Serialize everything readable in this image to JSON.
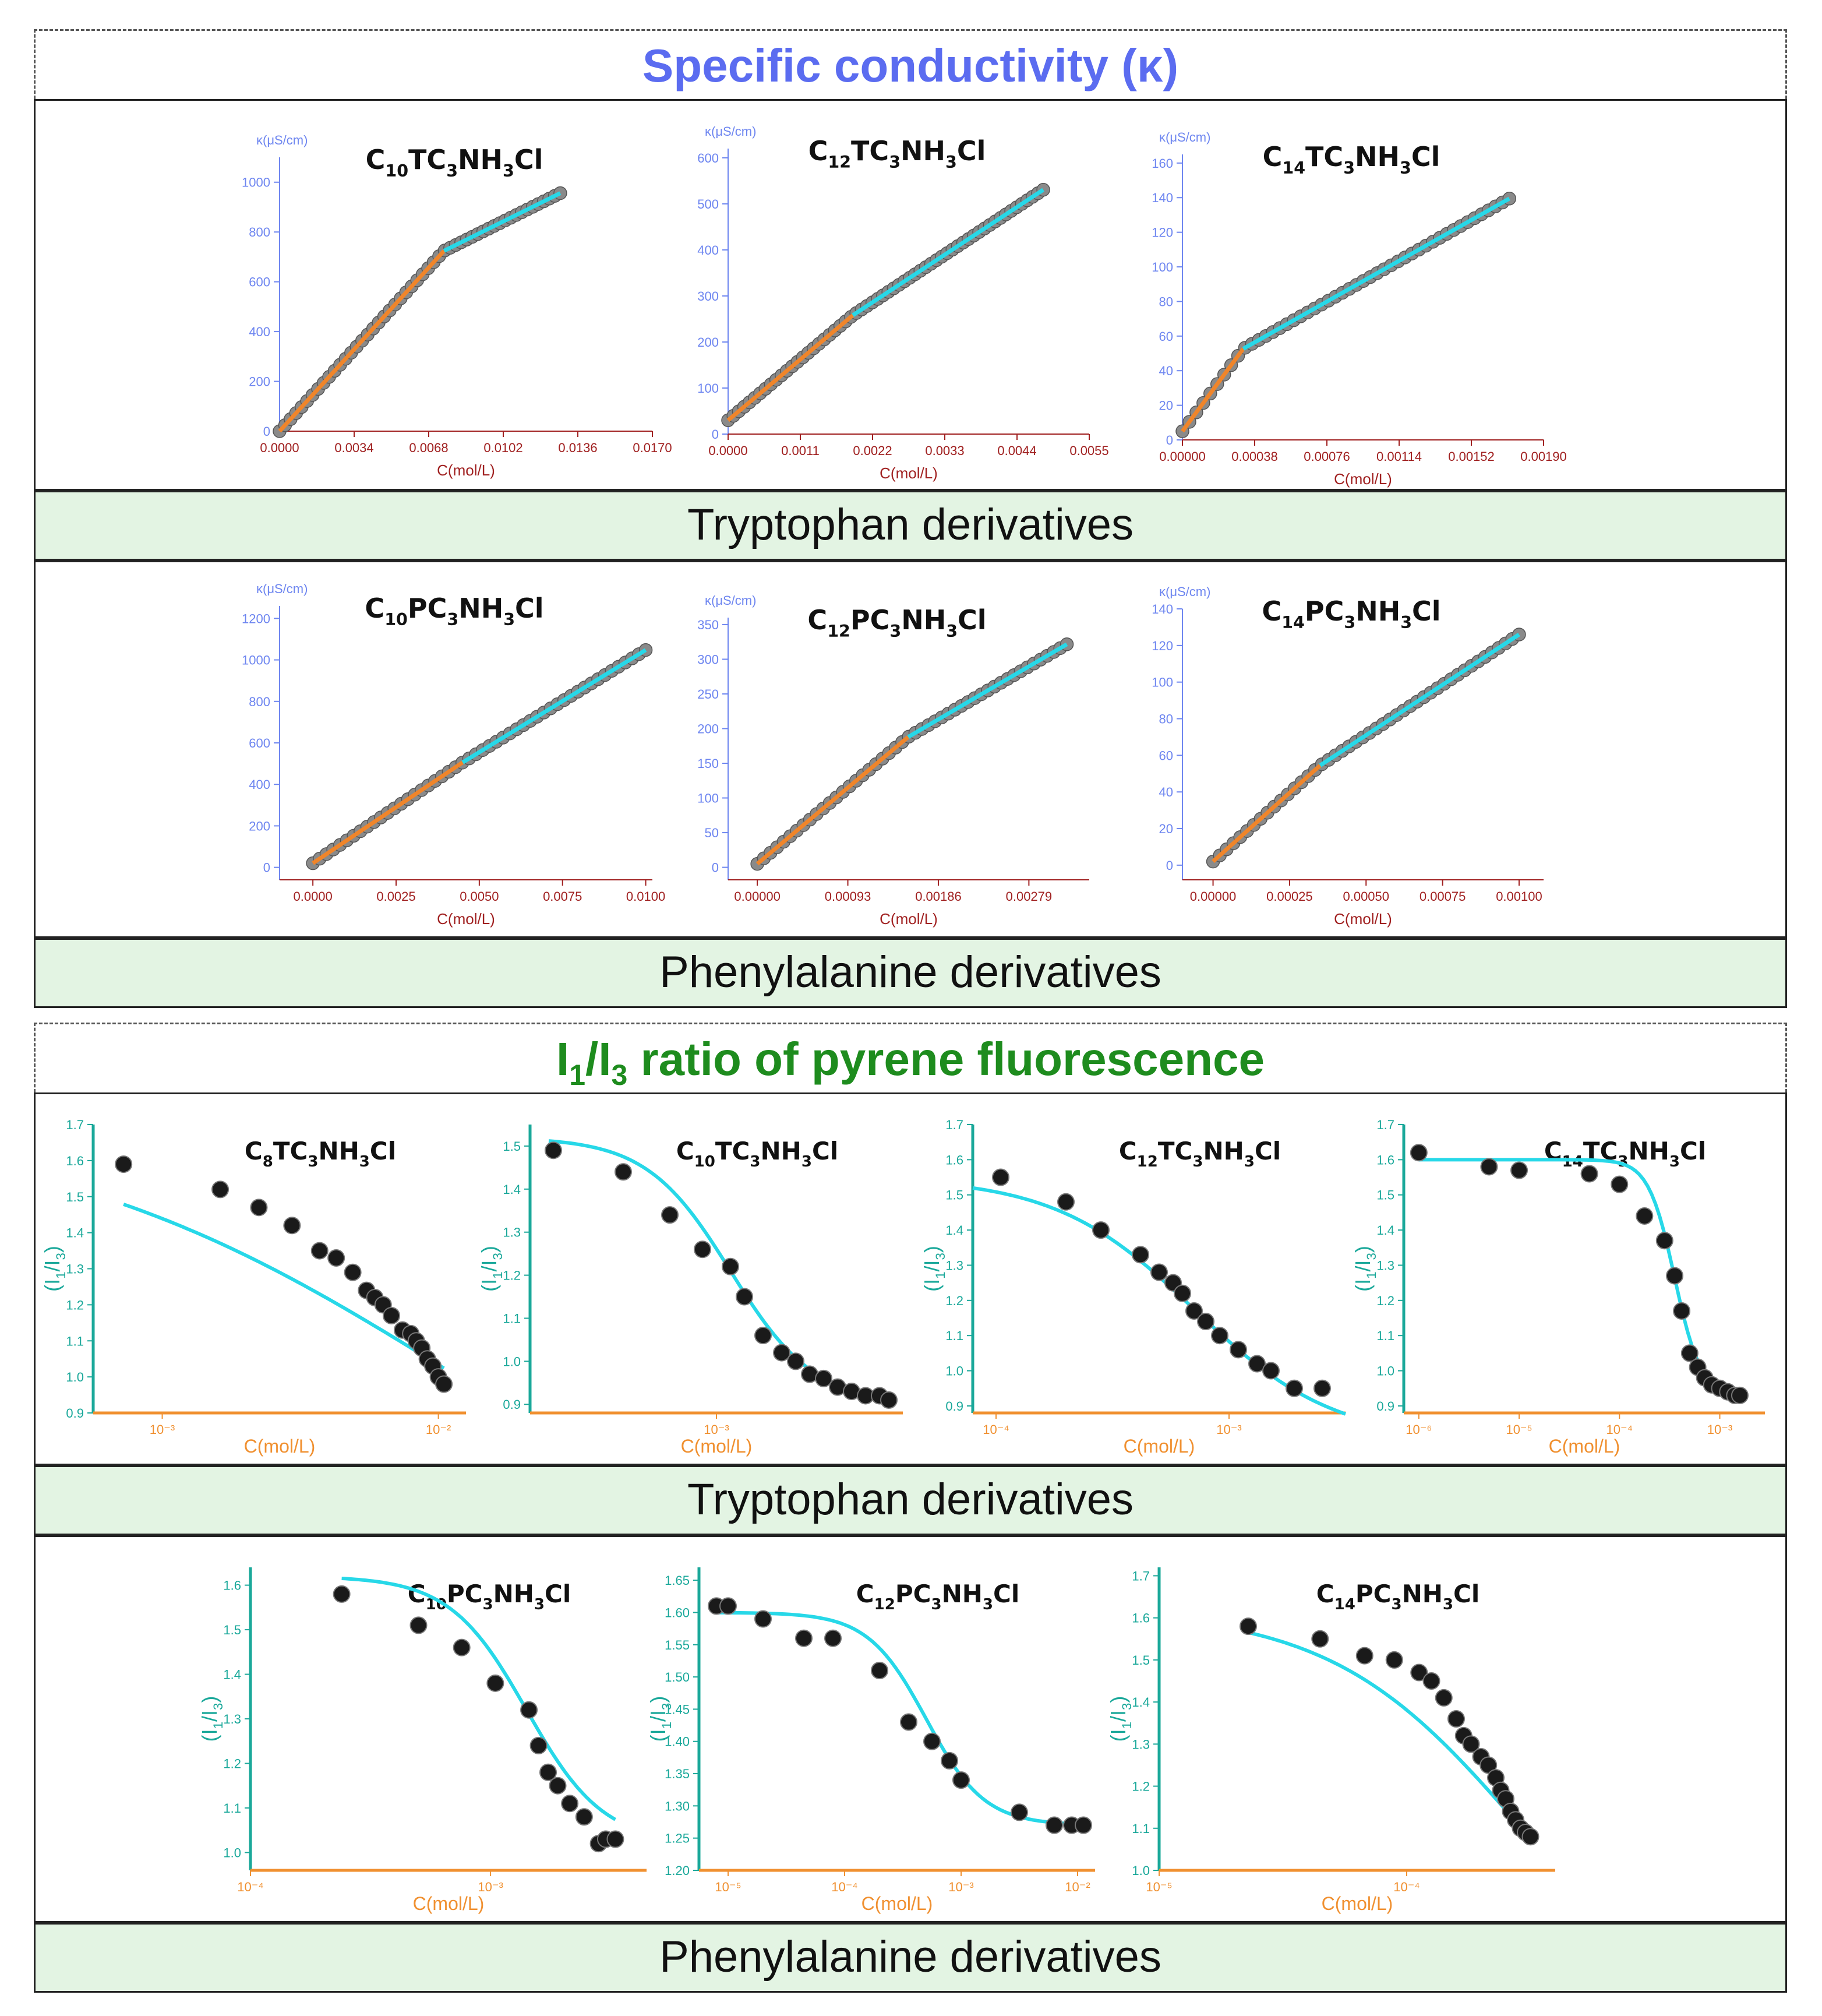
{
  "sections": {
    "conductivity_title": "Specific conductivity (κ)",
    "pyrene_title": {
      "main": "I",
      "s1": "1",
      "slash": "/I",
      "s3": "3",
      "rest": " ratio of pyrene fluorescence"
    },
    "band1": "Tryptophan derivatives",
    "band2": "Phenylalanine derivatives",
    "band3": "Tryptophan derivatives",
    "band4": "Phenylalanine derivatives"
  },
  "colors": {
    "title_blue": "#5b6cf0",
    "title_green": "#1e8c1e",
    "fit_cyan": "#27d8e8",
    "fit_orange": "#f0852a",
    "axis_blue": "#6e86f0",
    "axis_red": "#a02020",
    "axis_teal": "#1aa89a",
    "axis_orange": "#f09030"
  },
  "chart_data": [
    {
      "id": "c1",
      "type": "scatter",
      "kind": "lin",
      "title": "C10TC3NH3Cl",
      "title_parts": [
        "C",
        "10",
        "TC",
        "3",
        "NH",
        "3",
        "Cl"
      ],
      "ylabel": "κ(μS/cm)",
      "xlabel": "C(mol/L)",
      "xlim": [
        0,
        0.017
      ],
      "ylim": [
        0,
        1100
      ],
      "xticks": [
        0,
        0.0034,
        0.0068,
        0.0102,
        0.0136,
        0.017
      ],
      "xtick_labels": [
        "0.0000",
        "0.0034",
        "0.0068",
        "0.0102",
        "0.0136",
        "0.0170"
      ],
      "yticks": [
        0,
        200,
        400,
        600,
        800,
        1000
      ],
      "ytick_labels": [
        "0",
        "200",
        "400",
        "600",
        "800",
        "1000"
      ],
      "break": 0.0075,
      "s1": 96.6,
      "s2": 43.7,
      "xmax": 0.0128,
      "n": 52
    },
    {
      "id": "c2",
      "type": "scatter",
      "kind": "lin",
      "title": "C12TC3NH3Cl",
      "title_parts": [
        "C",
        "12",
        "TC",
        "3",
        "NH",
        "3",
        "Cl"
      ],
      "ylabel": "κ(μS/cm)",
      "xlabel": "C(mol/L)",
      "xlim": [
        0,
        0.0055
      ],
      "ylim": [
        0,
        620
      ],
      "xticks": [
        0,
        0.0011,
        0.0022,
        0.0033,
        0.0044,
        0.0055
      ],
      "xtick_labels": [
        "0.0000",
        "0.0011",
        "0.0022",
        "0.0033",
        "0.0044",
        "0.0055"
      ],
      "yticks": [
        0,
        100,
        200,
        300,
        400,
        500,
        600
      ],
      "ytick_labels": [
        "0",
        "100",
        "200",
        "300",
        "400",
        "500",
        "600"
      ],
      "break": 0.0019,
      "s1": 120,
      "s2": 94,
      "y0": 30,
      "xmax": 0.0048,
      "n": 60
    },
    {
      "id": "c3",
      "type": "scatter",
      "kind": "lin",
      "title": "C14TC3NH3Cl",
      "title_parts": [
        "C",
        "14",
        "TC",
        "3",
        "NH",
        "3",
        "Cl"
      ],
      "ylabel": "κ(μS/cm)",
      "xlabel": "C(mol/L)",
      "xlim": [
        0,
        0.0019
      ],
      "ylim": [
        0,
        165
      ],
      "xticks": [
        0,
        0.00038,
        0.00076,
        0.00114,
        0.00152,
        0.0019
      ],
      "xtick_labels": [
        "0.00000",
        "0.00038",
        "0.00076",
        "0.00114",
        "0.00152",
        "0.00190"
      ],
      "yticks": [
        0,
        20,
        40,
        60,
        80,
        100,
        120,
        140,
        160
      ],
      "ytick_labels": [
        "0",
        "20",
        "40",
        "60",
        "80",
        "100",
        "120",
        "140",
        "160"
      ],
      "break": 0.00032,
      "s1": 149,
      "s2": 62,
      "y0": 5,
      "xmax": 0.00172,
      "n": 48
    },
    {
      "id": "c4",
      "type": "scatter",
      "kind": "lin",
      "title": "C10PC3NH3Cl",
      "title_parts": [
        "C",
        "10",
        "PC",
        "3",
        "NH",
        "3",
        "Cl"
      ],
      "ylabel": "κ(μS/cm)",
      "xlabel": "C(mol/L)",
      "xlim": [
        -0.001,
        0.0102
      ],
      "ylim": [
        -60,
        1260
      ],
      "xticks": [
        0,
        0.0025,
        0.005,
        0.0075,
        0.01
      ],
      "xtick_labels": [
        "0.0000",
        "0.0025",
        "0.0050",
        "0.0075",
        "0.0100"
      ],
      "yticks": [
        0,
        200,
        400,
        600,
        800,
        1000,
        1200
      ],
      "ytick_labels": [
        "0",
        "200",
        "400",
        "600",
        "800",
        "1000",
        "1200"
      ],
      "break": 0.0045,
      "s1": 108,
      "s2": 98.5,
      "y0": 20,
      "xmin0": 0,
      "xmax": 0.01,
      "n": 50
    },
    {
      "id": "c5",
      "type": "scatter",
      "kind": "lin",
      "title": "C12PC3NH3Cl",
      "title_parts": [
        "C",
        "12",
        "PC",
        "3",
        "NH",
        "3",
        "Cl"
      ],
      "ylabel": "κ(μS/cm)",
      "xlabel": "C(mol/L)",
      "xlim": [
        -0.0003,
        0.00341
      ],
      "ylim": [
        -18,
        360
      ],
      "xticks": [
        0,
        0.00093,
        0.00186,
        0.00279
      ],
      "xtick_labels": [
        "0.00000",
        "0.00093",
        "0.00186",
        "0.00279"
      ],
      "yticks": [
        0,
        50,
        100,
        150,
        200,
        250,
        300,
        350
      ],
      "ytick_labels": [
        "0",
        "50",
        "100",
        "150",
        "200",
        "250",
        "300",
        "350"
      ],
      "break": 0.00155,
      "s1": 118,
      "s2": 82,
      "y0": 5,
      "xmin0": 0,
      "xmax": 0.00318,
      "n": 48
    },
    {
      "id": "c6",
      "type": "scatter",
      "kind": "lin",
      "title": "C14PC3NH3Cl",
      "title_parts": [
        "C",
        "14",
        "PC",
        "3",
        "NH",
        "3",
        "Cl"
      ],
      "ylabel": "κ(μS/cm)",
      "xlabel": "C(mol/L)",
      "xlim": [
        -0.0001,
        0.00108
      ],
      "ylim": [
        -8,
        140
      ],
      "xticks": [
        0,
        0.00025,
        0.0005,
        0.00075,
        0.001
      ],
      "xtick_labels": [
        "0.00000",
        "0.00025",
        "0.00050",
        "0.00075",
        "0.00100"
      ],
      "yticks": [
        0,
        20,
        40,
        60,
        80,
        100,
        120,
        140
      ],
      "ytick_labels": [
        "0",
        "20",
        "40",
        "60",
        "80",
        "100",
        "120",
        "140"
      ],
      "break": 0.00035,
      "s1": 150,
      "s2": 110,
      "y0": 2,
      "xmin0": 0,
      "xmax": 0.001,
      "n": 46
    },
    {
      "id": "p1",
      "type": "scatter",
      "kind": "log",
      "title": "C8TC3NH3Cl",
      "title_parts": [
        "C",
        "8",
        "TC",
        "3",
        "NH",
        "3",
        "Cl"
      ],
      "ylabel_parts": [
        "(I",
        "1",
        "/I",
        "3",
        ")"
      ],
      "xlabel": "C(mol/L)",
      "xlim": [
        -3.25,
        -1.9
      ],
      "ylim": [
        0.9,
        1.7
      ],
      "xticks": [
        -3,
        -2
      ],
      "xtick_labels": [
        "10⁻³",
        "10⁻²"
      ],
      "yticks": [
        0.9,
        1.0,
        1.1,
        1.2,
        1.3,
        1.4,
        1.5,
        1.6,
        1.7
      ],
      "ytick_labels": [
        "0.9",
        "1.0",
        "1.1",
        "1.2",
        "1.3",
        "1.4",
        "1.5",
        "1.6",
        "1.7"
      ],
      "x": [
        -3.14,
        -2.79,
        -2.65,
        -2.53,
        -2.43,
        -2.37,
        -2.31,
        -2.26,
        -2.23,
        -2.2,
        -2.17,
        -2.13,
        -2.1,
        -2.08,
        -2.06,
        -2.04,
        -2.02,
        -2.0,
        -1.98
      ],
      "y": [
        1.59,
        1.52,
        1.47,
        1.42,
        1.35,
        1.33,
        1.29,
        1.24,
        1.22,
        1.2,
        1.17,
        1.13,
        1.12,
        1.1,
        1.08,
        1.05,
        1.03,
        1.0,
        0.98
      ],
      "fit": {
        "top": 1.72,
        "bottom": 0.3,
        "x0": -1.95,
        "dx": 0.75
      },
      "fit_range": [
        -3.14,
        -1.98
      ]
    },
    {
      "id": "p2",
      "type": "scatter",
      "kind": "log",
      "title": "C10TC3NH3Cl",
      "title_parts": [
        "C",
        "10",
        "TC",
        "3",
        "NH",
        "3",
        "Cl"
      ],
      "ylabel_parts": [
        "(I",
        "1",
        "/I",
        "3",
        ")"
      ],
      "xlabel": "C(mol/L)",
      "xlim": [
        -3.4,
        -2.6
      ],
      "ylim": [
        0.88,
        1.55
      ],
      "xticks": [
        -3
      ],
      "xtick_labels": [
        "10⁻³"
      ],
      "yticks": [
        0.9,
        1.0,
        1.1,
        1.2,
        1.3,
        1.4,
        1.5
      ],
      "ytick_labels": [
        "0.9",
        "1.0",
        "1.1",
        "1.2",
        "1.3",
        "1.4",
        "1.5"
      ],
      "x": [
        -3.35,
        -3.2,
        -3.1,
        -3.03,
        -2.97,
        -2.94,
        -2.9,
        -2.86,
        -2.83,
        -2.8,
        -2.77,
        -2.74,
        -2.71,
        -2.68,
        -2.65,
        -2.63
      ],
      "y": [
        1.49,
        1.44,
        1.34,
        1.26,
        1.22,
        1.15,
        1.06,
        1.02,
        1.0,
        0.97,
        0.96,
        0.94,
        0.93,
        0.92,
        0.92,
        0.91
      ],
      "fit": {
        "top": 1.52,
        "bottom": 0.9,
        "x0": -2.97,
        "dx": 0.09
      },
      "fit_range": [
        -3.36,
        -2.63
      ]
    },
    {
      "id": "p3",
      "type": "scatter",
      "kind": "log",
      "title": "C12TC3NH3Cl",
      "title_parts": [
        "C",
        "12",
        "TC",
        "3",
        "NH",
        "3",
        "Cl"
      ],
      "ylabel_parts": [
        "(I",
        "1",
        "/I",
        "3",
        ")"
      ],
      "xlabel": "C(mol/L)",
      "xlim": [
        -4.1,
        -2.5
      ],
      "ylim": [
        0.88,
        1.7
      ],
      "xticks": [
        -4,
        -3
      ],
      "xtick_labels": [
        "10⁻⁴",
        "10⁻³"
      ],
      "yticks": [
        0.9,
        1.0,
        1.1,
        1.2,
        1.3,
        1.4,
        1.5,
        1.6,
        1.7
      ],
      "ytick_labels": [
        "0.9",
        "1.0",
        "1.1",
        "1.2",
        "1.3",
        "1.4",
        "1.5",
        "1.6",
        "1.7"
      ],
      "x": [
        -3.98,
        -3.7,
        -3.55,
        -3.38,
        -3.3,
        -3.24,
        -3.2,
        -3.15,
        -3.1,
        -3.04,
        -2.96,
        -2.88,
        -2.82,
        -2.72,
        -2.6
      ],
      "y": [
        1.55,
        1.48,
        1.4,
        1.33,
        1.28,
        1.25,
        1.22,
        1.17,
        1.14,
        1.1,
        1.06,
        1.02,
        1.0,
        0.95,
        0.95
      ],
      "fit": {
        "top": 1.55,
        "bottom": 0.8,
        "x0": -3.15,
        "dx": 0.3
      },
      "fit_range": [
        -4.1,
        -2.5
      ]
    },
    {
      "id": "p4",
      "type": "scatter",
      "kind": "log",
      "title": "C14TC3NH3Cl",
      "title_parts": [
        "C",
        "14",
        "TC",
        "3",
        "NH",
        "3",
        "Cl"
      ],
      "ylabel_parts": [
        "(I",
        "1",
        "/I",
        "3",
        ")"
      ],
      "xlabel": "C(mol/L)",
      "xlim": [
        -6.15,
        -2.55
      ],
      "ylim": [
        0.88,
        1.7
      ],
      "xticks": [
        -6,
        -5,
        -4,
        -3
      ],
      "xtick_labels": [
        "10⁻⁶",
        "10⁻⁵",
        "10⁻⁴",
        "10⁻³"
      ],
      "yticks": [
        0.9,
        1.0,
        1.1,
        1.2,
        1.3,
        1.4,
        1.5,
        1.6,
        1.7
      ],
      "ytick_labels": [
        "0.9",
        "1.0",
        "1.1",
        "1.2",
        "1.3",
        "1.4",
        "1.5",
        "1.6",
        "1.7"
      ],
      "x": [
        -6.0,
        -5.3,
        -5.0,
        -4.3,
        -4.0,
        -3.75,
        -3.55,
        -3.45,
        -3.38,
        -3.3,
        -3.22,
        -3.15,
        -3.08,
        -3.0,
        -2.92,
        -2.85,
        -2.8
      ],
      "y": [
        1.62,
        1.58,
        1.57,
        1.56,
        1.53,
        1.44,
        1.37,
        1.27,
        1.17,
        1.05,
        1.01,
        0.98,
        0.96,
        0.95,
        0.94,
        0.93,
        0.93
      ],
      "fit": {
        "top": 1.6,
        "bottom": 0.93,
        "x0": -3.45,
        "dx": 0.13
      },
      "fit_range": [
        -6.0,
        -2.8
      ]
    },
    {
      "id": "p5",
      "type": "scatter",
      "kind": "log",
      "title": "C10PC3NH3Cl",
      "title_parts": [
        "C",
        "10",
        "PC",
        "3",
        "NH",
        "3",
        "Cl"
      ],
      "ylabel_parts": [
        "(I",
        "1",
        "/I",
        "3",
        ")"
      ],
      "xlabel": "C(mol/L)",
      "xlim": [
        -4.0,
        -2.35
      ],
      "ylim": [
        0.96,
        1.64
      ],
      "xticks": [
        -4,
        -3
      ],
      "xtick_labels": [
        "10⁻⁴",
        "10⁻³"
      ],
      "yticks": [
        1.0,
        1.1,
        1.2,
        1.3,
        1.4,
        1.5,
        1.6
      ],
      "ytick_labels": [
        "1.0",
        "1.1",
        "1.2",
        "1.3",
        "1.4",
        "1.5",
        "1.6"
      ],
      "x": [
        -3.62,
        -3.3,
        -3.12,
        -2.98,
        -2.84,
        -2.8,
        -2.76,
        -2.72,
        -2.67,
        -2.61,
        -2.55,
        -2.52,
        -2.48
      ],
      "y": [
        1.58,
        1.51,
        1.46,
        1.38,
        1.32,
        1.24,
        1.18,
        1.15,
        1.11,
        1.08,
        1.02,
        1.03,
        1.03
      ],
      "fit": {
        "top": 1.62,
        "bottom": 1.02,
        "x0": -2.85,
        "dx": 0.16
      },
      "fit_range": [
        -3.62,
        -2.48
      ]
    },
    {
      "id": "p6",
      "type": "scatter",
      "kind": "log",
      "title": "C12PC3NH3Cl",
      "title_parts": [
        "C",
        "12",
        "PC",
        "3",
        "NH",
        "3",
        "Cl"
      ],
      "ylabel_parts": [
        "(I",
        "1",
        "/I",
        "3",
        ")"
      ],
      "xlabel": "C(mol/L)",
      "xlim": [
        -5.25,
        -1.85
      ],
      "ylim": [
        1.2,
        1.67
      ],
      "xticks": [
        -5,
        -4,
        -3,
        -2
      ],
      "xtick_labels": [
        "10⁻⁵",
        "10⁻⁴",
        "10⁻³",
        "10⁻²"
      ],
      "yticks": [
        1.2,
        1.25,
        1.3,
        1.35,
        1.4,
        1.45,
        1.5,
        1.55,
        1.6,
        1.65
      ],
      "ytick_labels": [
        "1.20",
        "1.25",
        "1.30",
        "1.35",
        "1.40",
        "1.45",
        "1.50",
        "1.55",
        "1.60",
        "1.65"
      ],
      "x": [
        -5.1,
        -5.0,
        -4.7,
        -4.35,
        -4.1,
        -3.7,
        -3.45,
        -3.25,
        -3.1,
        -3.0,
        -2.5,
        -2.2,
        -2.05,
        -1.95
      ],
      "y": [
        1.61,
        1.61,
        1.59,
        1.56,
        1.56,
        1.51,
        1.43,
        1.4,
        1.37,
        1.34,
        1.29,
        1.27,
        1.27,
        1.27
      ],
      "fit": {
        "top": 1.6,
        "bottom": 1.27,
        "x0": -3.3,
        "dx": 0.25
      },
      "fit_range": [
        -5.1,
        -1.95
      ]
    },
    {
      "id": "p7",
      "type": "scatter",
      "kind": "log",
      "title": "C14PC3NH3Cl",
      "title_parts": [
        "C",
        "14",
        "PC",
        "3",
        "NH",
        "3",
        "Cl"
      ],
      "ylabel_parts": [
        "(I",
        "1",
        "/I",
        "3",
        ")"
      ],
      "xlabel": "C(mol/L)",
      "xlim": [
        -5.0,
        -3.4
      ],
      "ylim": [
        1.0,
        1.72
      ],
      "xticks": [
        -5,
        -4
      ],
      "xtick_labels": [
        "10⁻⁵",
        "10⁻⁴"
      ],
      "yticks": [
        1.0,
        1.1,
        1.2,
        1.3,
        1.4,
        1.5,
        1.6,
        1.7
      ],
      "ytick_labels": [
        "1.0",
        "1.1",
        "1.2",
        "1.3",
        "1.4",
        "1.5",
        "1.6",
        "1.7"
      ],
      "x": [
        -4.64,
        -4.35,
        -4.17,
        -4.05,
        -3.95,
        -3.9,
        -3.85,
        -3.8,
        -3.77,
        -3.74,
        -3.7,
        -3.67,
        -3.64,
        -3.62,
        -3.6,
        -3.58,
        -3.56,
        -3.54,
        -3.52,
        -3.5
      ],
      "y": [
        1.58,
        1.55,
        1.51,
        1.5,
        1.47,
        1.45,
        1.41,
        1.36,
        1.32,
        1.3,
        1.27,
        1.25,
        1.22,
        1.19,
        1.17,
        1.14,
        1.12,
        1.1,
        1.09,
        1.08
      ],
      "fit": {
        "top": 1.62,
        "bottom": 0.6,
        "x0": -3.55,
        "dx": 0.38
      },
      "fit_range": [
        -4.64,
        -3.5
      ]
    }
  ]
}
